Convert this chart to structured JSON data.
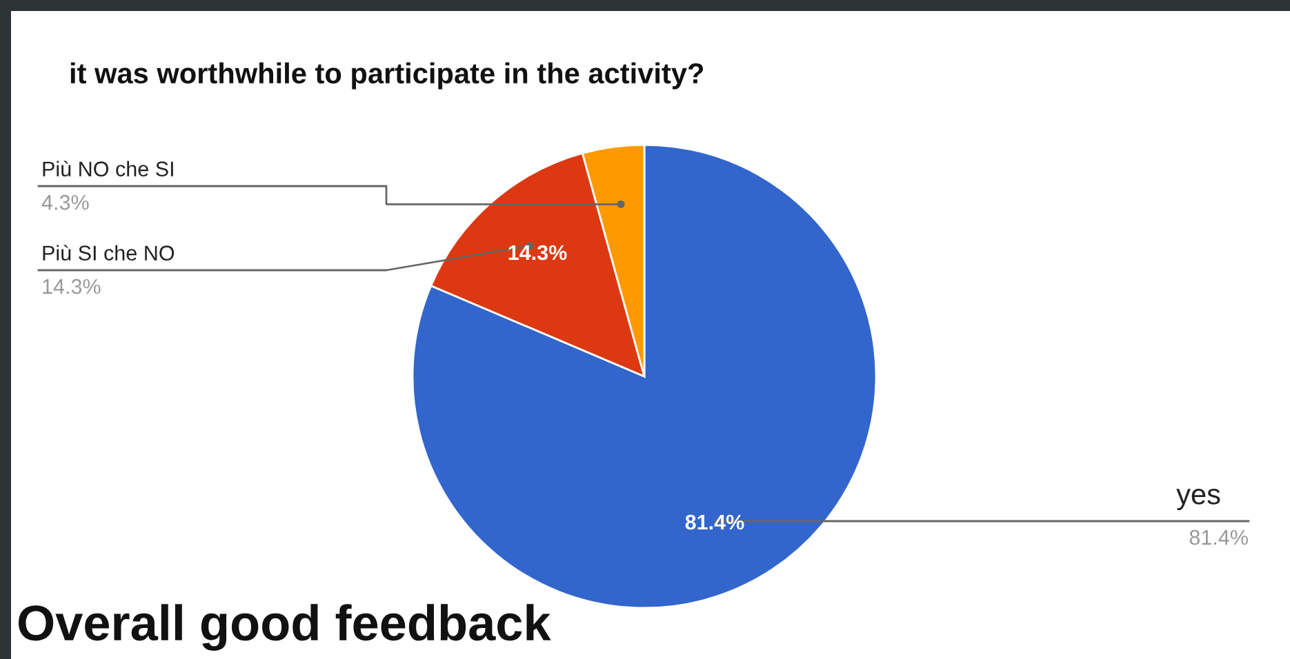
{
  "chart_data": {
    "type": "pie",
    "title": "it was worthwhile to participate in the activity?",
    "categories": [
      "yes",
      "Più SI che NO",
      "Più NO che SI"
    ],
    "values": [
      81.4,
      14.3,
      4.3
    ],
    "colors": [
      "#3366cc",
      "#dc3912",
      "#ff9900"
    ],
    "value_labels": [
      "81.4%",
      "14.3%",
      null
    ],
    "annotations": [
      "81.4%",
      "14.3%",
      "4.3%",
      "Overall good feedback"
    ]
  }
}
